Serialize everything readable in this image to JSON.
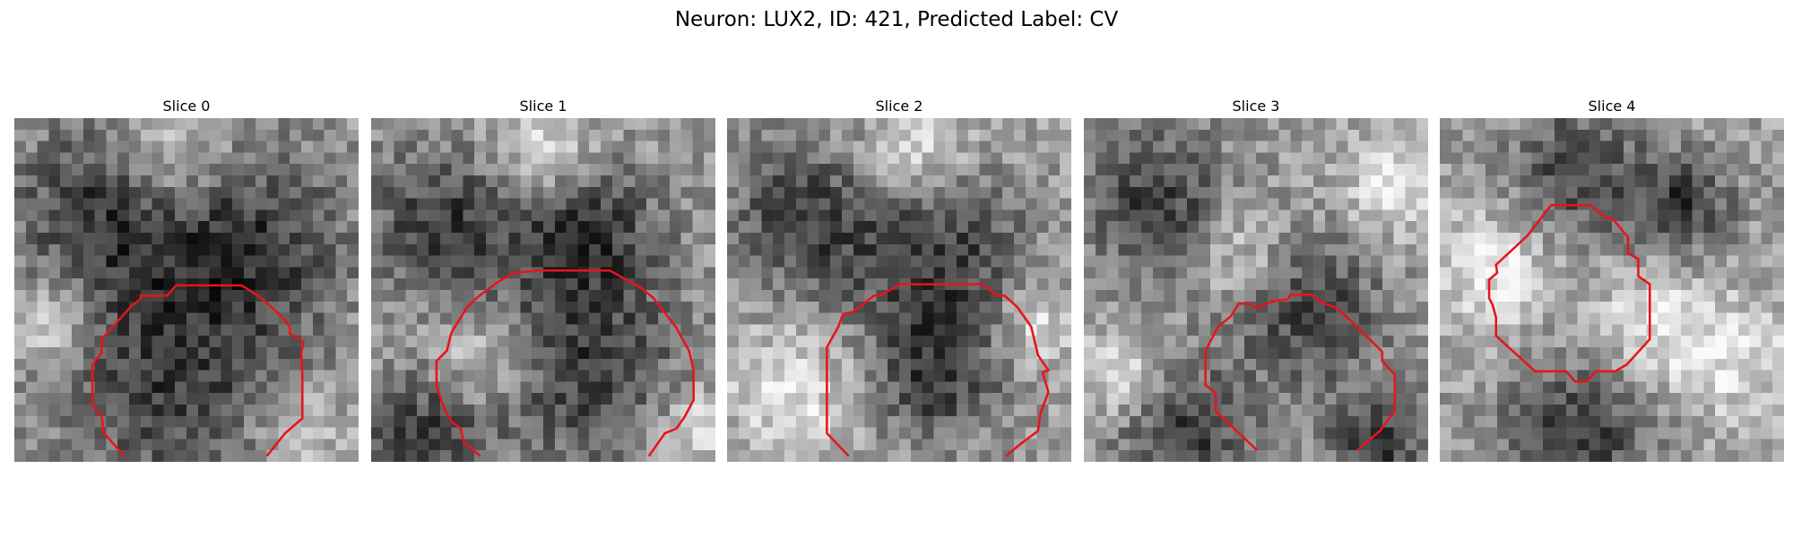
{
  "figure": {
    "title": "Neuron: LUX2, ID: 421, Predicted Label: CV"
  },
  "colors": {
    "contour": "#e8141b",
    "background": "#ffffff"
  },
  "panels": [
    {
      "title": "Slice 0",
      "seed": 11,
      "dark_blobs": [
        [
          0.68,
          0.35,
          0.28
        ],
        [
          0.25,
          0.25,
          0.25
        ],
        [
          0.45,
          0.75,
          0.35
        ]
      ],
      "light_blobs": [
        [
          0.45,
          0.12,
          0.18
        ],
        [
          0.1,
          0.6,
          0.12
        ],
        [
          0.82,
          0.9,
          0.12
        ]
      ]
    },
    {
      "title": "Slice 1",
      "seed": 23,
      "dark_blobs": [
        [
          0.2,
          0.3,
          0.22
        ],
        [
          0.62,
          0.32,
          0.22
        ],
        [
          0.6,
          0.72,
          0.3
        ],
        [
          0.15,
          0.92,
          0.18
        ]
      ],
      "light_blobs": [
        [
          0.5,
          0.1,
          0.16
        ],
        [
          0.33,
          0.7,
          0.16
        ],
        [
          0.95,
          0.9,
          0.12
        ]
      ]
    },
    {
      "title": "Slice 2",
      "seed": 37,
      "dark_blobs": [
        [
          0.22,
          0.3,
          0.22
        ],
        [
          0.62,
          0.4,
          0.25
        ],
        [
          0.6,
          0.75,
          0.2
        ]
      ],
      "light_blobs": [
        [
          0.2,
          0.8,
          0.2
        ],
        [
          0.55,
          0.1,
          0.15
        ],
        [
          0.9,
          0.6,
          0.12
        ]
      ]
    },
    {
      "title": "Slice 3",
      "seed": 53,
      "dark_blobs": [
        [
          0.22,
          0.25,
          0.22
        ],
        [
          0.65,
          0.55,
          0.22
        ],
        [
          0.3,
          0.92,
          0.2
        ],
        [
          0.85,
          0.95,
          0.15
        ]
      ],
      "light_blobs": [
        [
          0.45,
          0.4,
          0.15
        ],
        [
          0.1,
          0.75,
          0.12
        ],
        [
          0.9,
          0.2,
          0.15
        ]
      ]
    },
    {
      "title": "Slice 4",
      "seed": 71,
      "dark_blobs": [
        [
          0.4,
          0.15,
          0.18
        ],
        [
          0.4,
          0.92,
          0.22
        ],
        [
          0.7,
          0.25,
          0.15
        ]
      ],
      "light_blobs": [
        [
          0.15,
          0.45,
          0.18
        ],
        [
          0.85,
          0.7,
          0.18
        ],
        [
          0.6,
          0.6,
          0.15
        ]
      ]
    }
  ]
}
